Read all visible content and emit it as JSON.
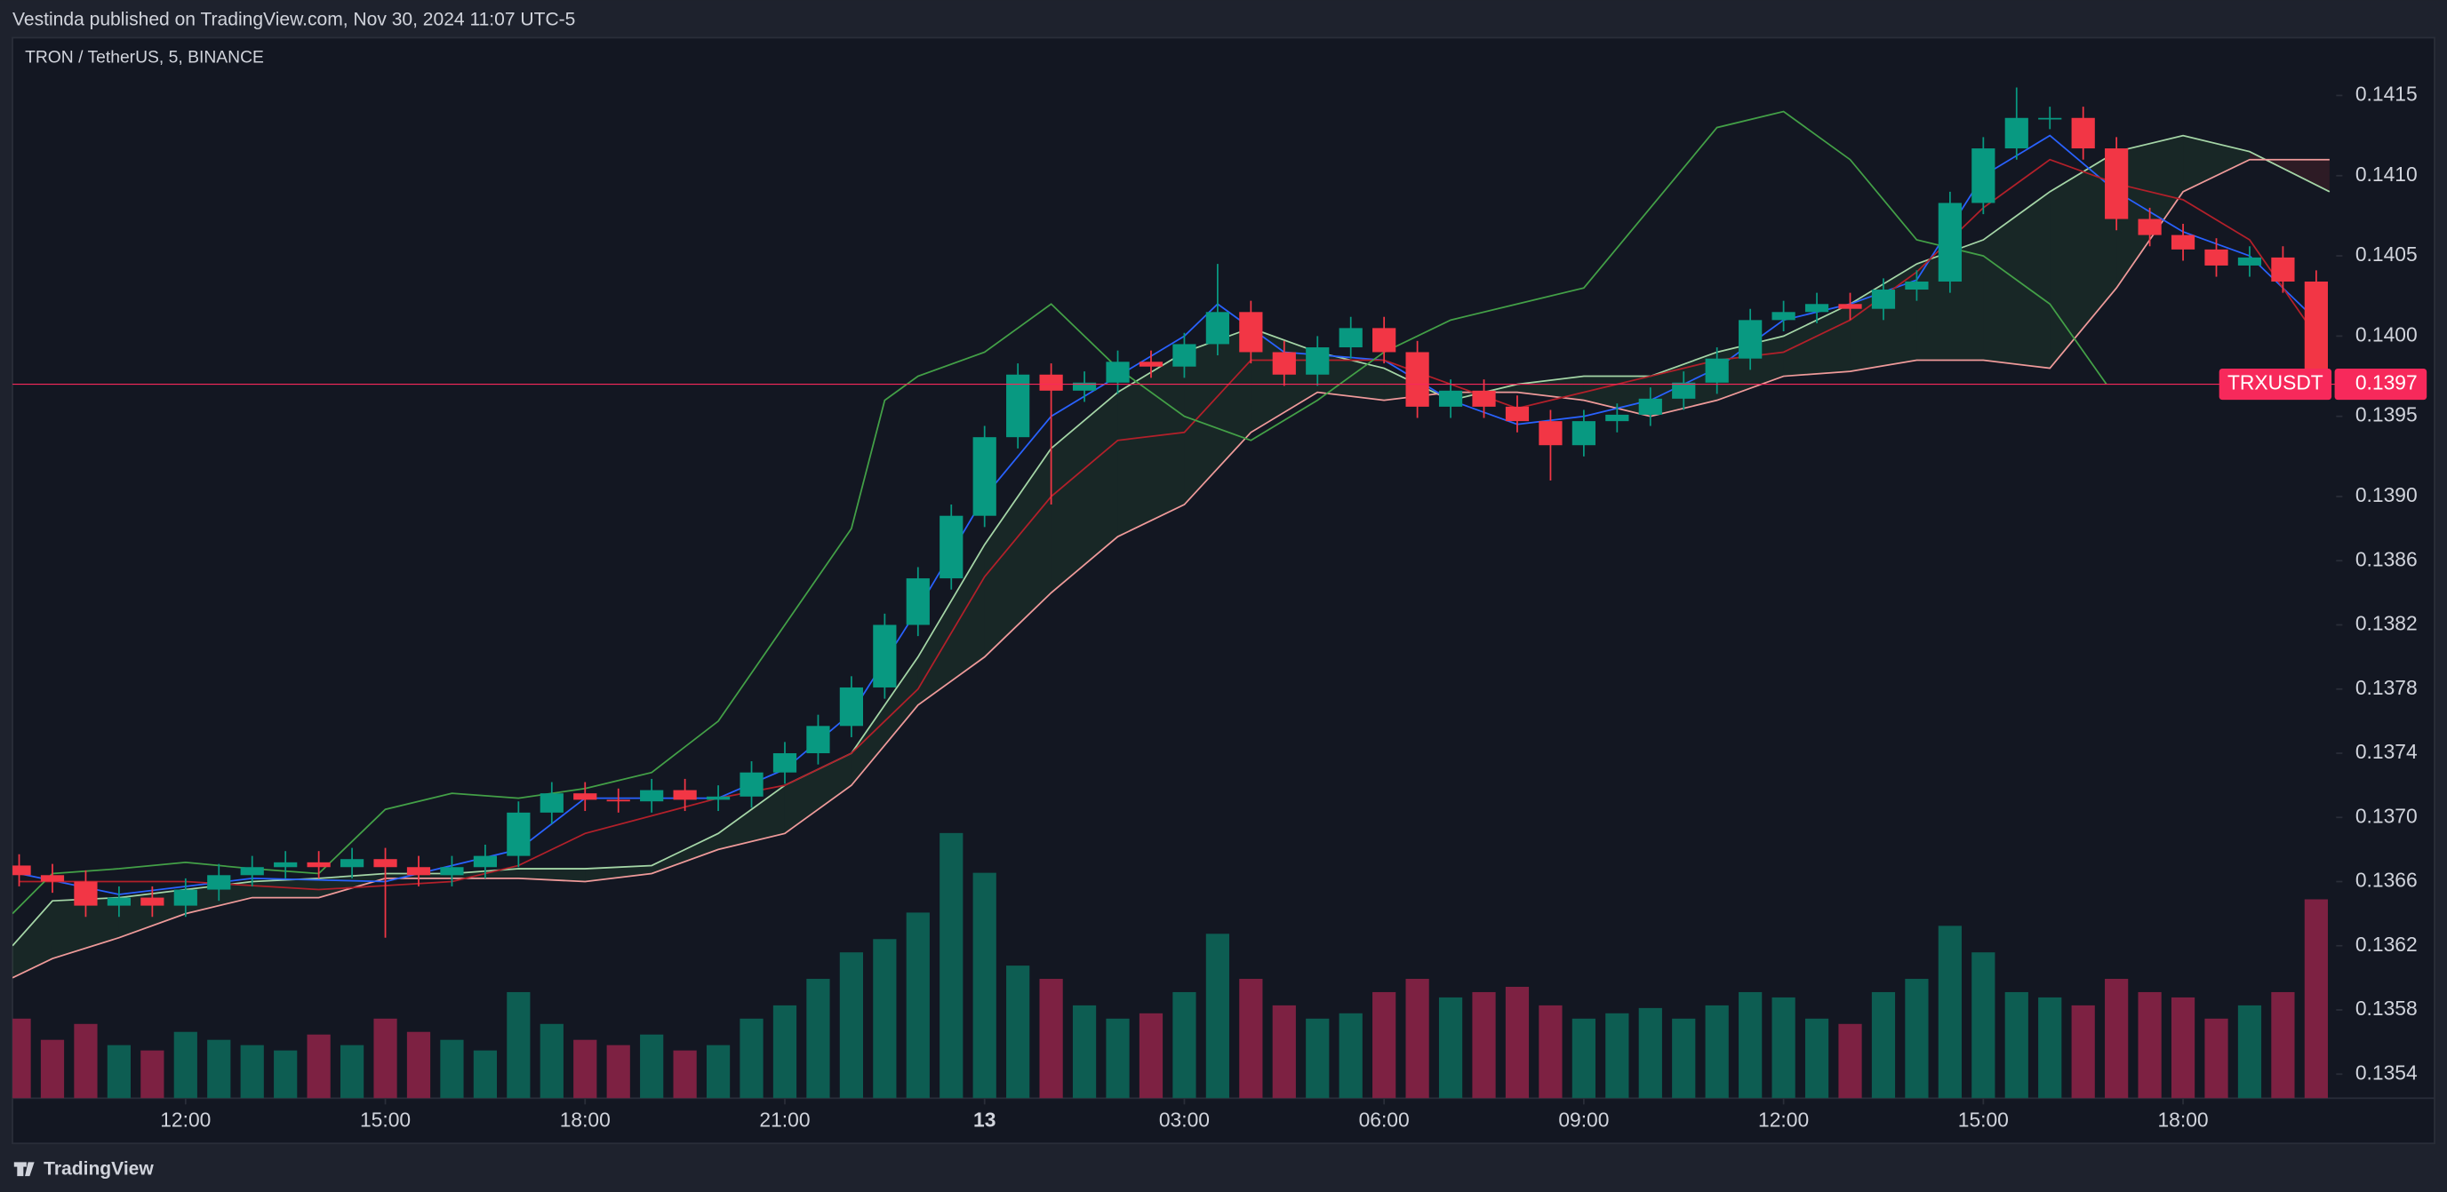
{
  "header": "Vestinda published on TradingView.com, Nov 30, 2024 11:07 UTC-5",
  "footer": "TradingView",
  "chart_data": {
    "type": "candlestick",
    "title": "TRON / TetherUS, 5, BINANCE",
    "xlim": [
      9.4,
      44.3
    ],
    "ylim": [
      0.13525,
      0.14186
    ],
    "volume_ylim": [
      0,
      400
    ],
    "xticks": [
      {
        "value": 12,
        "label": "12:00"
      },
      {
        "value": 15,
        "label": "15:00"
      },
      {
        "value": 18,
        "label": "18:00"
      },
      {
        "value": 21,
        "label": "21:00"
      },
      {
        "value": 24,
        "label": "13"
      },
      {
        "value": 27,
        "label": "03:00"
      },
      {
        "value": 30,
        "label": "06:00"
      },
      {
        "value": 33,
        "label": "09:00"
      },
      {
        "value": 36,
        "label": "12:00"
      },
      {
        "value": 39,
        "label": "15:00"
      },
      {
        "value": 42,
        "label": "18:00"
      }
    ],
    "yticks": [
      0.1415,
      {
        "value": 0.141,
        "label": "0.1410"
      },
      0.1405,
      {
        "value": 0.14,
        "label": "0.1400"
      },
      0.1395,
      {
        "value": 0.139,
        "label": "0.1390"
      },
      0.1386,
      0.1382,
      0.1378,
      0.1374,
      {
        "value": 0.137,
        "label": "0.1370"
      },
      0.1366,
      0.1362,
      0.1358,
      0.1354
    ],
    "up_color": "#089981",
    "down_color": "#f23645",
    "volume_up_color": "#0d5d52",
    "volume_down_color": "#7d2142",
    "x": [
      9.5,
      10,
      10.5,
      11,
      11.5,
      12,
      12.5,
      13,
      13.5,
      14,
      14.5,
      15,
      15.5,
      16,
      16.5,
      17,
      17.5,
      18,
      18.5,
      19,
      19.5,
      20,
      20.5,
      21,
      21.5,
      22,
      22.5,
      23,
      23.5,
      24,
      24.5,
      25,
      25.5,
      26,
      26.5,
      27,
      27.5,
      28,
      28.5,
      29,
      29.5,
      30,
      30.5,
      31,
      31.5,
      32,
      32.5,
      33,
      33.5,
      34,
      34.5,
      35,
      35.5,
      36,
      36.5,
      37,
      37.5,
      38,
      38.5,
      39,
      39.5,
      40,
      40.5,
      41,
      41.5,
      42,
      42.5,
      43,
      43.5,
      44
    ],
    "open": [
      0.1367,
      0.13664,
      0.1366,
      0.13645,
      0.1365,
      0.13645,
      0.13655,
      0.13664,
      0.13669,
      0.13672,
      0.13669,
      0.13674,
      0.13669,
      0.13664,
      0.13669,
      0.13676,
      0.13703,
      0.13715,
      0.13711,
      0.1371,
      0.13717,
      0.13711,
      0.13713,
      0.13728,
      0.1374,
      0.13757,
      0.13781,
      0.1382,
      0.13849,
      0.13888,
      0.13937,
      0.13976,
      0.13966,
      0.13971,
      0.13984,
      0.13981,
      0.13995,
      0.14015,
      0.1399,
      0.13976,
      0.13993,
      0.14005,
      0.1399,
      0.13956,
      0.13966,
      0.13956,
      0.13947,
      0.13932,
      0.13947,
      0.13951,
      0.13961,
      0.13971,
      0.13986,
      0.1401,
      0.14015,
      0.1402,
      0.14017,
      0.14029,
      0.14034,
      0.14083,
      0.14117,
      0.14136,
      0.14136,
      0.14117,
      0.14073,
      0.14063,
      0.14054,
      0.14044,
      0.14049,
      0.14034
    ],
    "high": [
      0.13677,
      0.13671,
      0.13667,
      0.13657,
      0.13657,
      0.13662,
      0.13671,
      0.13676,
      0.13679,
      0.13679,
      0.13681,
      0.13681,
      0.13676,
      0.13676,
      0.13683,
      0.1371,
      0.13722,
      0.13722,
      0.13718,
      0.13724,
      0.13724,
      0.1372,
      0.13735,
      0.13747,
      0.13764,
      0.13788,
      0.13827,
      0.13856,
      0.13895,
      0.13944,
      0.13983,
      0.13983,
      0.13978,
      0.13991,
      0.13991,
      0.14002,
      0.14045,
      0.14022,
      0.13997,
      0.14,
      0.14012,
      0.14012,
      0.13997,
      0.13973,
      0.13973,
      0.13963,
      0.13954,
      0.13954,
      0.13958,
      0.13968,
      0.13978,
      0.13993,
      0.14017,
      0.14022,
      0.14027,
      0.14027,
      0.14036,
      0.14041,
      0.1409,
      0.14124,
      0.14155,
      0.14143,
      0.14143,
      0.14124,
      0.1408,
      0.1407,
      0.14061,
      0.14056,
      0.14056,
      0.14041
    ],
    "low": [
      0.13657,
      0.13653,
      0.13638,
      0.13638,
      0.13638,
      0.13638,
      0.13648,
      0.13657,
      0.13662,
      0.13662,
      0.13662,
      0.13625,
      0.13657,
      0.13657,
      0.13662,
      0.13669,
      0.13696,
      0.13704,
      0.13703,
      0.13703,
      0.13704,
      0.13704,
      0.13706,
      0.13721,
      0.13733,
      0.1375,
      0.13774,
      0.13813,
      0.13842,
      0.13881,
      0.1393,
      0.13895,
      0.13959,
      0.13964,
      0.13974,
      0.13974,
      0.13988,
      0.13983,
      0.13969,
      0.13969,
      0.13986,
      0.13983,
      0.13949,
      0.13949,
      0.13949,
      0.1394,
      0.1391,
      0.13925,
      0.1394,
      0.13944,
      0.13954,
      0.13964,
      0.13979,
      0.14003,
      0.14008,
      0.1401,
      0.1401,
      0.14022,
      0.14027,
      0.14076,
      0.1411,
      0.14129,
      0.1411,
      0.14066,
      0.14056,
      0.14047,
      0.14037,
      0.14037,
      0.14027,
      0.13963
    ],
    "close": [
      0.13664,
      0.1366,
      0.13645,
      0.1365,
      0.13645,
      0.13655,
      0.13664,
      0.13669,
      0.13672,
      0.13669,
      0.13674,
      0.13669,
      0.13664,
      0.13669,
      0.13676,
      0.13703,
      0.13715,
      0.13711,
      0.1371,
      0.13717,
      0.13711,
      0.13713,
      0.13728,
      0.1374,
      0.13757,
      0.13781,
      0.1382,
      0.13849,
      0.13888,
      0.13937,
      0.13976,
      0.13966,
      0.13971,
      0.13984,
      0.13981,
      0.13995,
      0.14015,
      0.1399,
      0.13976,
      0.13993,
      0.14005,
      0.1399,
      0.13956,
      0.13966,
      0.13956,
      0.13947,
      0.13932,
      0.13947,
      0.13951,
      0.13961,
      0.13971,
      0.13986,
      0.1401,
      0.14015,
      0.1402,
      0.14017,
      0.14029,
      0.14034,
      0.14083,
      0.14117,
      0.14136,
      0.14136,
      0.14117,
      0.14073,
      0.14063,
      0.14054,
      0.14044,
      0.14049,
      0.14034,
      0.1397
    ],
    "volume": [
      30,
      22,
      28,
      20,
      18,
      25,
      22,
      20,
      18,
      24,
      20,
      30,
      25,
      22,
      18,
      40,
      28,
      22,
      20,
      24,
      18,
      20,
      30,
      35,
      45,
      55,
      60,
      70,
      100,
      85,
      50,
      45,
      35,
      30,
      32,
      40,
      62,
      45,
      35,
      30,
      32,
      40,
      45,
      38,
      40,
      42,
      35,
      30,
      32,
      34,
      30,
      35,
      40,
      38,
      30,
      28,
      40,
      45,
      65,
      55,
      40,
      38,
      35,
      45,
      40,
      38,
      30,
      35,
      40,
      75
    ],
    "lines": [
      {
        "color": "#2962ff",
        "x": [
          9.5,
          11,
          13,
          15,
          17,
          18,
          20,
          21,
          22,
          23,
          24,
          25,
          26,
          27,
          27.5,
          28.5,
          30,
          31,
          32,
          33,
          34,
          35,
          36,
          37,
          38,
          39,
          40,
          41,
          42,
          43,
          44
        ],
        "values": [
          0.13665,
          0.13652,
          0.13662,
          0.1366,
          0.1368,
          0.13712,
          0.13712,
          0.1373,
          0.13765,
          0.1383,
          0.139,
          0.1395,
          0.13975,
          0.14,
          0.1402,
          0.1399,
          0.13985,
          0.1396,
          0.13945,
          0.1395,
          0.1396,
          0.1398,
          0.1401,
          0.1402,
          0.14035,
          0.141,
          0.14125,
          0.1409,
          0.14065,
          0.1405,
          0.1401
        ]
      },
      {
        "color": "#b2202a",
        "x": [
          9.5,
          12,
          14,
          16,
          17,
          18,
          20,
          21,
          22,
          23,
          24,
          25,
          26,
          27,
          28,
          30,
          31,
          32,
          33,
          34,
          35,
          36,
          37,
          38,
          39,
          40,
          41,
          42,
          43,
          44
        ],
        "values": [
          0.1366,
          0.1366,
          0.13655,
          0.1366,
          0.1367,
          0.1369,
          0.13712,
          0.1372,
          0.1374,
          0.1378,
          0.1385,
          0.139,
          0.13935,
          0.1394,
          0.13985,
          0.13985,
          0.1397,
          0.13955,
          0.13965,
          0.13975,
          0.13985,
          0.1399,
          0.1401,
          0.1404,
          0.1408,
          0.1411,
          0.14095,
          0.14085,
          0.1406,
          0.14
        ]
      },
      {
        "color": "#43a047",
        "x": [
          9.4,
          10,
          11,
          12,
          13,
          14,
          15,
          16,
          17,
          18,
          19,
          20,
          21,
          22,
          22.5,
          23,
          24,
          25,
          26,
          27,
          28,
          29,
          30,
          31,
          32,
          33,
          34,
          35,
          36,
          37,
          38,
          39,
          40,
          40.85
        ],
        "values": [
          0.1364,
          0.13665,
          0.13668,
          0.13672,
          0.13668,
          0.13665,
          0.13705,
          0.13715,
          0.13712,
          0.13718,
          0.13728,
          0.1376,
          0.1382,
          0.1388,
          0.1396,
          0.13975,
          0.1399,
          0.1402,
          0.1398,
          0.1395,
          0.13935,
          0.1396,
          0.1399,
          0.1401,
          0.1402,
          0.1403,
          0.1408,
          0.1413,
          0.1414,
          0.1411,
          0.1406,
          0.1405,
          0.1402,
          0.1397
        ]
      }
    ],
    "cloud": {
      "up_color": "#a5d6a7",
      "down_color": "#ef9a9a",
      "up_fill": "rgba(67,160,71,0.12)",
      "down_fill": "rgba(242,54,69,0.12)",
      "x": [
        9.4,
        10,
        11,
        12,
        13,
        14,
        15,
        16,
        17,
        18,
        19,
        20,
        21,
        22,
        23,
        24,
        25,
        26,
        27,
        28,
        29,
        30,
        31,
        32,
        33,
        34,
        35,
        36,
        37,
        38,
        39,
        40,
        41,
        42,
        43,
        44.2
      ],
      "span_a": [
        0.1362,
        0.13648,
        0.1365,
        0.13655,
        0.1366,
        0.13662,
        0.13665,
        0.13665,
        0.13668,
        0.13668,
        0.1367,
        0.1369,
        0.1372,
        0.1374,
        0.138,
        0.1387,
        0.1393,
        0.13965,
        0.1399,
        0.14005,
        0.1399,
        0.1398,
        0.1396,
        0.1397,
        0.13975,
        0.13975,
        0.1399,
        0.14,
        0.1402,
        0.14045,
        0.1406,
        0.1409,
        0.14115,
        0.14125,
        0.14115,
        0.1409
      ],
      "span_b": [
        0.136,
        0.13612,
        0.13625,
        0.1364,
        0.1365,
        0.1365,
        0.13662,
        0.13662,
        0.13662,
        0.1366,
        0.13665,
        0.1368,
        0.1369,
        0.1372,
        0.1377,
        0.138,
        0.1384,
        0.13875,
        0.13895,
        0.1394,
        0.13965,
        0.1396,
        0.13965,
        0.13965,
        0.1396,
        0.1395,
        0.1396,
        0.13975,
        0.13978,
        0.13985,
        0.13985,
        0.1398,
        0.1403,
        0.1409,
        0.1411,
        0.1411
      ]
    },
    "last_price": 0.1397,
    "last_price_label": "TRXUSDT",
    "last_price_color": "#f7295b"
  }
}
